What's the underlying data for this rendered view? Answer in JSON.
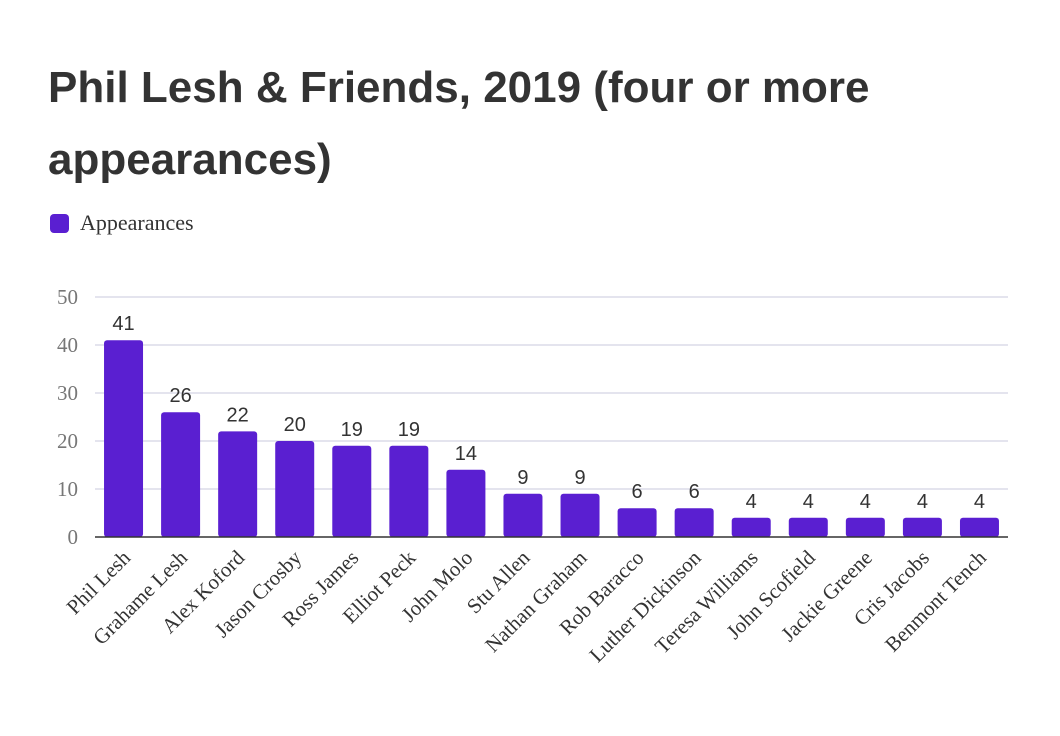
{
  "chart_data": {
    "type": "bar",
    "title": "Phil Lesh & Friends, 2019 (four or more appearances)",
    "xlabel": "",
    "ylabel": "",
    "categories": [
      "Phil Lesh",
      "Grahame Lesh",
      "Alex Koford",
      "Jason Crosby",
      "Ross James",
      "Elliot Peck",
      "John Molo",
      "Stu Allen",
      "Nathan Graham",
      "Rob Baracco",
      "Luther Dickinson",
      "Teresa Williams",
      "John Scofield",
      "Jackie Greene",
      "Cris Jacobs",
      "Benmont Tench"
    ],
    "series": [
      {
        "name": "Appearances",
        "values": [
          41,
          26,
          22,
          20,
          19,
          19,
          14,
          9,
          9,
          6,
          6,
          4,
          4,
          4,
          4,
          4
        ],
        "color": "#5a1fd1"
      }
    ],
    "ylim": [
      0,
      50
    ],
    "yticks": [
      0,
      10,
      20,
      30,
      40,
      50
    ],
    "grid": true,
    "legend_position": "top-left",
    "data_labels": true,
    "colors": {
      "bar": "#5a1fd1",
      "grid": "#dcdce8",
      "axis": "#333333",
      "tick_label": "#777777",
      "text": "#333333"
    }
  }
}
